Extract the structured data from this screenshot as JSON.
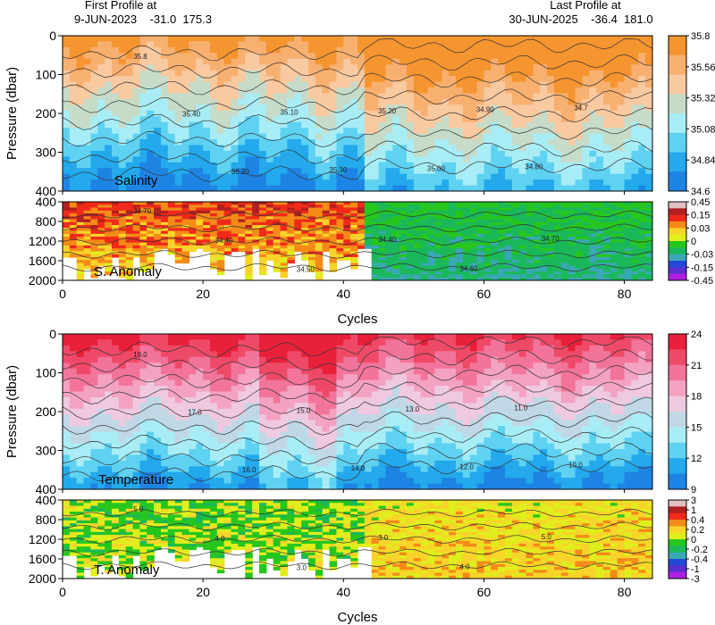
{
  "header": {
    "first_label": "First Profile at",
    "first_value": "9-JUN-2023    -31.0  175.3",
    "last_label": "Last Profile at",
    "last_value": "30-JUN-2025    -36.4  181.0"
  },
  "chart_data": [
    {
      "id": "salinity",
      "type": "heatmap",
      "title": "",
      "panel_label": "Salinity",
      "xlabel": "",
      "ylabel": "Pressure (dbar)",
      "xlim": [
        0,
        84
      ],
      "ylim": [
        400,
        0
      ],
      "yticks": [
        0,
        100,
        200,
        300,
        400
      ],
      "colorbar_ticks": [
        "35.8",
        "35.56",
        "35.32",
        "35.08",
        "34.84",
        "34.6"
      ],
      "colorbar_colors": [
        "#f59530",
        "#f8b070",
        "#f9c9a0",
        "#c6dcc8",
        "#a8edf6",
        "#5fd2f2",
        "#23a9ec",
        "#1e84e4"
      ],
      "contour_labels": [
        "35.8",
        "35.40",
        "35.20",
        "35.10",
        "35.30",
        "35.20",
        "35.00",
        "34.90",
        "34.80",
        "34.7"
      ]
    },
    {
      "id": "salinity-anomaly",
      "type": "heatmap",
      "panel_label": "S. Anomaly",
      "xlabel": "Cycles",
      "ylabel": "",
      "xlim": [
        0,
        84
      ],
      "ylim": [
        2000,
        400
      ],
      "yticks": [
        400,
        800,
        1200,
        1600,
        2000
      ],
      "xticks": [
        0,
        20,
        40,
        60,
        80
      ],
      "colorbar_ticks": [
        "0.45",
        "0.15",
        "0.03",
        "0",
        "-0.03",
        "-0.15",
        "-0.45"
      ],
      "colorbar_colors": [
        "#e0bfc0",
        "#b02020",
        "#ef2a1a",
        "#f48a18",
        "#f8d32a",
        "#dfee1c",
        "#27c61f",
        "#1ab85a",
        "#3aa8b4",
        "#2248d8",
        "#5a2fd0",
        "#b020e0"
      ],
      "contour_labels": [
        "34.70",
        "34.40",
        "34.50",
        "34.40",
        "34.60",
        "34.70"
      ]
    },
    {
      "id": "temperature",
      "type": "heatmap",
      "panel_label": "Temperature",
      "xlabel": "",
      "ylabel": "Pressure (dbar)",
      "xlim": [
        0,
        84
      ],
      "ylim": [
        400,
        0
      ],
      "yticks": [
        0,
        100,
        200,
        300,
        400
      ],
      "colorbar_ticks": [
        "24",
        "21",
        "18",
        "15",
        "12",
        "9"
      ],
      "colorbar_colors": [
        "#e8203a",
        "#ee4a68",
        "#f2749a",
        "#f4a2c2",
        "#eec9e0",
        "#c0d8e6",
        "#a8edf6",
        "#5fd2f2",
        "#23a9ec",
        "#1e84e4"
      ],
      "contour_labels": [
        "19.0",
        "17.0",
        "16.0",
        "15.0",
        "14.0",
        "13.0",
        "12.0",
        "11.0",
        "10.0"
      ]
    },
    {
      "id": "temperature-anomaly",
      "type": "heatmap",
      "panel_label": "T. Anomaly",
      "xlabel": "Cycles",
      "ylabel": "",
      "xlim": [
        0,
        84
      ],
      "ylim": [
        2000,
        400
      ],
      "yticks": [
        400,
        800,
        1200,
        1600,
        2000
      ],
      "xticks": [
        0,
        20,
        40,
        60,
        80
      ],
      "colorbar_ticks": [
        "3",
        "1",
        "0.4",
        "0.2",
        "0",
        "-0.2",
        "-0.4",
        "-1",
        "-3"
      ],
      "colorbar_colors": [
        "#e0bfc0",
        "#b02020",
        "#ef2a1a",
        "#f48a18",
        "#f8d32a",
        "#dfee1c",
        "#27c61f",
        "#1ab85a",
        "#3aa8b4",
        "#2248d8",
        "#5a2fd0",
        "#b020e0"
      ],
      "contour_labels": [
        "5.0",
        "4.0",
        "3.0",
        "3.0",
        "4.0",
        "5.0"
      ]
    }
  ]
}
